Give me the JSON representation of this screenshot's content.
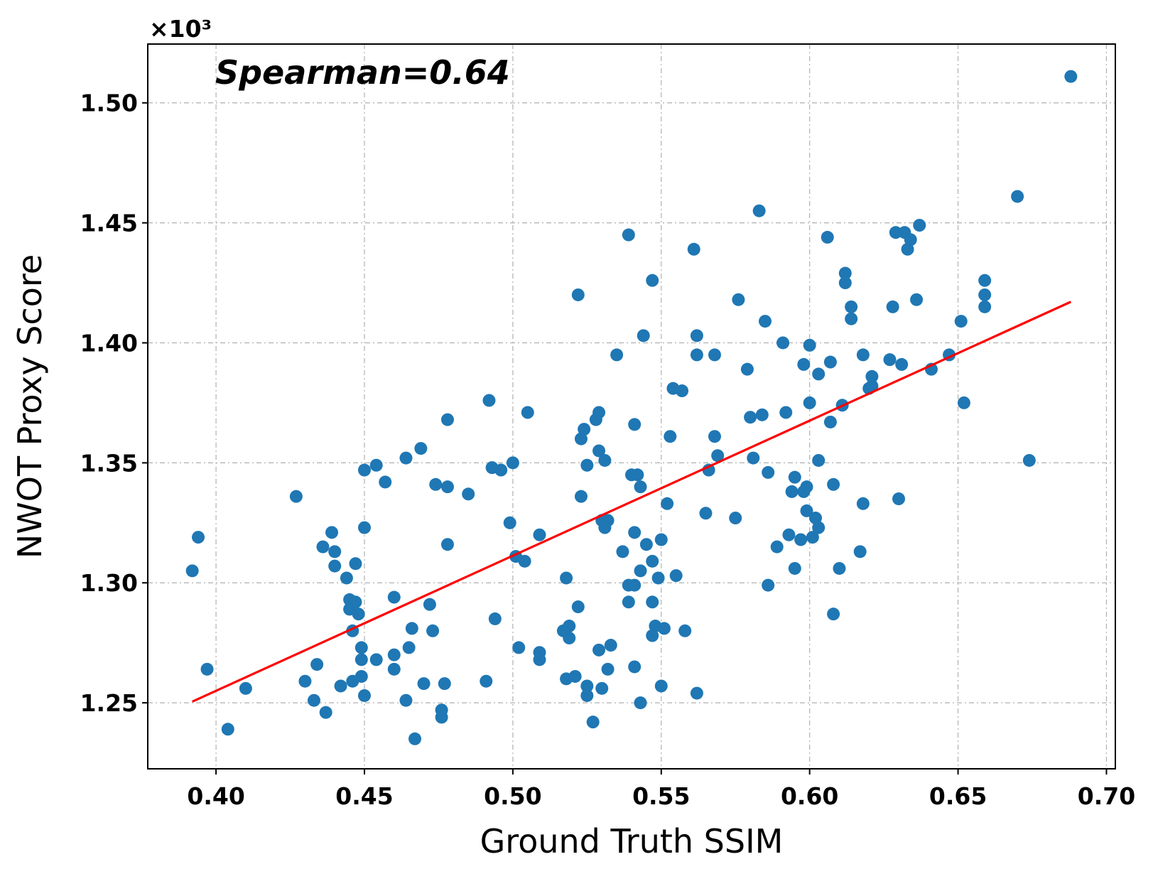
{
  "chart_data": {
    "type": "scatter",
    "xlabel": "Ground Truth SSIM",
    "ylabel": "NWOT Proxy Score",
    "y_offset_label": "×10³",
    "annotation": "Spearman=0.64",
    "xlim": [
      0.377,
      0.703
    ],
    "ylim": [
      1.2225,
      1.5245
    ],
    "x_ticks": [
      0.4,
      0.45,
      0.5,
      0.55,
      0.6,
      0.65,
      0.7
    ],
    "x_tick_labels": [
      "0.40",
      "0.45",
      "0.50",
      "0.55",
      "0.60",
      "0.65",
      "0.70"
    ],
    "y_ticks": [
      1.25,
      1.3,
      1.35,
      1.4,
      1.45,
      1.5
    ],
    "y_tick_labels": [
      "1.25",
      "1.30",
      "1.35",
      "1.40",
      "1.45",
      "1.50"
    ],
    "grid": true,
    "colors": {
      "points": "#1f77b4",
      "fit_line": "#ff0000",
      "grid": "#b0b0b0"
    },
    "fit_line": {
      "x": [
        0.392,
        0.688
      ],
      "y": [
        1.2505,
        1.4171
      ]
    },
    "points": [
      [
        0.392,
        1.305
      ],
      [
        0.394,
        1.319
      ],
      [
        0.397,
        1.264
      ],
      [
        0.404,
        1.239
      ],
      [
        0.41,
        1.256
      ],
      [
        0.427,
        1.336
      ],
      [
        0.43,
        1.259
      ],
      [
        0.433,
        1.251
      ],
      [
        0.434,
        1.266
      ],
      [
        0.436,
        1.315
      ],
      [
        0.437,
        1.246
      ],
      [
        0.439,
        1.321
      ],
      [
        0.44,
        1.313
      ],
      [
        0.44,
        1.307
      ],
      [
        0.442,
        1.257
      ],
      [
        0.444,
        1.302
      ],
      [
        0.445,
        1.293
      ],
      [
        0.445,
        1.289
      ],
      [
        0.446,
        1.28
      ],
      [
        0.446,
        1.259
      ],
      [
        0.447,
        1.308
      ],
      [
        0.447,
        1.292
      ],
      [
        0.448,
        1.287
      ],
      [
        0.449,
        1.273
      ],
      [
        0.449,
        1.268
      ],
      [
        0.449,
        1.261
      ],
      [
        0.45,
        1.253
      ],
      [
        0.45,
        1.323
      ],
      [
        0.45,
        1.347
      ],
      [
        0.454,
        1.349
      ],
      [
        0.454,
        1.268
      ],
      [
        0.457,
        1.342
      ],
      [
        0.46,
        1.294
      ],
      [
        0.46,
        1.27
      ],
      [
        0.46,
        1.264
      ],
      [
        0.464,
        1.352
      ],
      [
        0.464,
        1.251
      ],
      [
        0.465,
        1.273
      ],
      [
        0.466,
        1.281
      ],
      [
        0.467,
        1.235
      ],
      [
        0.469,
        1.356
      ],
      [
        0.47,
        1.258
      ],
      [
        0.472,
        1.291
      ],
      [
        0.473,
        1.28
      ],
      [
        0.474,
        1.341
      ],
      [
        0.476,
        1.247
      ],
      [
        0.476,
        1.244
      ],
      [
        0.477,
        1.258
      ],
      [
        0.478,
        1.368
      ],
      [
        0.478,
        1.34
      ],
      [
        0.478,
        1.316
      ],
      [
        0.485,
        1.337
      ],
      [
        0.491,
        1.259
      ],
      [
        0.492,
        1.376
      ],
      [
        0.493,
        1.348
      ],
      [
        0.494,
        1.285
      ],
      [
        0.496,
        1.347
      ],
      [
        0.499,
        1.325
      ],
      [
        0.5,
        1.35
      ],
      [
        0.501,
        1.311
      ],
      [
        0.502,
        1.273
      ],
      [
        0.504,
        1.309
      ],
      [
        0.505,
        1.371
      ],
      [
        0.509,
        1.32
      ],
      [
        0.509,
        1.271
      ],
      [
        0.509,
        1.268
      ],
      [
        0.517,
        1.28
      ],
      [
        0.518,
        1.302
      ],
      [
        0.518,
        1.26
      ],
      [
        0.519,
        1.277
      ],
      [
        0.519,
        1.282
      ],
      [
        0.521,
        1.261
      ],
      [
        0.522,
        1.29
      ],
      [
        0.522,
        1.42
      ],
      [
        0.523,
        1.36
      ],
      [
        0.523,
        1.336
      ],
      [
        0.524,
        1.364
      ],
      [
        0.525,
        1.349
      ],
      [
        0.525,
        1.257
      ],
      [
        0.525,
        1.253
      ],
      [
        0.527,
        1.242
      ],
      [
        0.528,
        1.368
      ],
      [
        0.529,
        1.371
      ],
      [
        0.529,
        1.355
      ],
      [
        0.529,
        1.272
      ],
      [
        0.53,
        1.326
      ],
      [
        0.53,
        1.256
      ],
      [
        0.531,
        1.323
      ],
      [
        0.531,
        1.351
      ],
      [
        0.532,
        1.326
      ],
      [
        0.532,
        1.264
      ],
      [
        0.533,
        1.274
      ],
      [
        0.535,
        1.395
      ],
      [
        0.537,
        1.313
      ],
      [
        0.539,
        1.445
      ],
      [
        0.539,
        1.299
      ],
      [
        0.539,
        1.292
      ],
      [
        0.54,
        1.345
      ],
      [
        0.541,
        1.366
      ],
      [
        0.541,
        1.321
      ],
      [
        0.541,
        1.299
      ],
      [
        0.541,
        1.265
      ],
      [
        0.542,
        1.345
      ],
      [
        0.543,
        1.34
      ],
      [
        0.543,
        1.305
      ],
      [
        0.543,
        1.25
      ],
      [
        0.544,
        1.403
      ],
      [
        0.545,
        1.316
      ],
      [
        0.547,
        1.426
      ],
      [
        0.547,
        1.309
      ],
      [
        0.547,
        1.292
      ],
      [
        0.547,
        1.278
      ],
      [
        0.548,
        1.282
      ],
      [
        0.549,
        1.302
      ],
      [
        0.55,
        1.318
      ],
      [
        0.55,
        1.257
      ],
      [
        0.551,
        1.281
      ],
      [
        0.552,
        1.333
      ],
      [
        0.553,
        1.361
      ],
      [
        0.554,
        1.381
      ],
      [
        0.555,
        1.303
      ],
      [
        0.557,
        1.38
      ],
      [
        0.558,
        1.28
      ],
      [
        0.561,
        1.439
      ],
      [
        0.562,
        1.403
      ],
      [
        0.562,
        1.395
      ],
      [
        0.562,
        1.254
      ],
      [
        0.565,
        1.329
      ],
      [
        0.566,
        1.347
      ],
      [
        0.568,
        1.361
      ],
      [
        0.568,
        1.395
      ],
      [
        0.569,
        1.353
      ],
      [
        0.575,
        1.327
      ],
      [
        0.576,
        1.418
      ],
      [
        0.579,
        1.389
      ],
      [
        0.58,
        1.369
      ],
      [
        0.581,
        1.352
      ],
      [
        0.583,
        1.455
      ],
      [
        0.584,
        1.37
      ],
      [
        0.585,
        1.409
      ],
      [
        0.586,
        1.299
      ],
      [
        0.586,
        1.346
      ],
      [
        0.589,
        1.315
      ],
      [
        0.591,
        1.4
      ],
      [
        0.592,
        1.371
      ],
      [
        0.593,
        1.32
      ],
      [
        0.594,
        1.338
      ],
      [
        0.595,
        1.344
      ],
      [
        0.595,
        1.306
      ],
      [
        0.597,
        1.318
      ],
      [
        0.598,
        1.391
      ],
      [
        0.598,
        1.338
      ],
      [
        0.599,
        1.33
      ],
      [
        0.599,
        1.34
      ],
      [
        0.6,
        1.399
      ],
      [
        0.6,
        1.375
      ],
      [
        0.601,
        1.319
      ],
      [
        0.602,
        1.327
      ],
      [
        0.603,
        1.387
      ],
      [
        0.603,
        1.351
      ],
      [
        0.603,
        1.323
      ],
      [
        0.606,
        1.444
      ],
      [
        0.607,
        1.392
      ],
      [
        0.607,
        1.367
      ],
      [
        0.608,
        1.341
      ],
      [
        0.608,
        1.287
      ],
      [
        0.61,
        1.306
      ],
      [
        0.611,
        1.374
      ],
      [
        0.612,
        1.429
      ],
      [
        0.612,
        1.425
      ],
      [
        0.614,
        1.415
      ],
      [
        0.614,
        1.41
      ],
      [
        0.617,
        1.313
      ],
      [
        0.618,
        1.333
      ],
      [
        0.618,
        1.395
      ],
      [
        0.62,
        1.381
      ],
      [
        0.621,
        1.386
      ],
      [
        0.621,
        1.382
      ],
      [
        0.627,
        1.393
      ],
      [
        0.628,
        1.415
      ],
      [
        0.629,
        1.446
      ],
      [
        0.63,
        1.335
      ],
      [
        0.631,
        1.391
      ],
      [
        0.632,
        1.446
      ],
      [
        0.633,
        1.439
      ],
      [
        0.634,
        1.443
      ],
      [
        0.636,
        1.418
      ],
      [
        0.637,
        1.449
      ],
      [
        0.641,
        1.389
      ],
      [
        0.647,
        1.395
      ],
      [
        0.651,
        1.409
      ],
      [
        0.652,
        1.375
      ],
      [
        0.659,
        1.426
      ],
      [
        0.659,
        1.42
      ],
      [
        0.659,
        1.415
      ],
      [
        0.67,
        1.461
      ],
      [
        0.674,
        1.351
      ],
      [
        0.688,
        1.511
      ]
    ]
  }
}
